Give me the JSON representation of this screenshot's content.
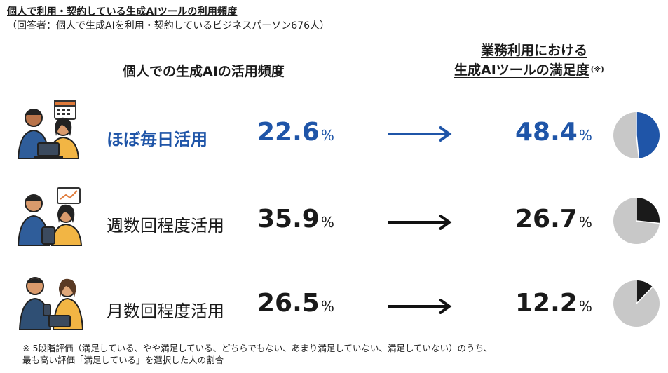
{
  "header": {
    "title": "個人で利用・契約している生成AIツールの利用頻度",
    "subtitle": "（回答者：個人で生成AIを利用・契約しているビジネスパーソン676人）"
  },
  "columns": {
    "left": "個人での生成AIの活用頻度",
    "right_line1": "業務利用における",
    "right_line2": "生成AIツールの満足度",
    "right_note": "(※)"
  },
  "rows": [
    {
      "label": "ほぼ毎日活用",
      "pct": "22.6",
      "unit": "%",
      "sat": "48.4",
      "sat_unit": "%",
      "highlight": true,
      "color": "#1f55a8"
    },
    {
      "label": "週数回程度活用",
      "pct": "35.9",
      "unit": "%",
      "sat": "26.7",
      "sat_unit": "%",
      "highlight": false,
      "color": "#1a1a1a"
    },
    {
      "label": "月数回程度活用",
      "pct": "26.5",
      "unit": "%",
      "sat": "12.2",
      "sat_unit": "%",
      "highlight": false,
      "color": "#1a1a1a"
    }
  ],
  "footnote": {
    "line1": "※ 5段階評価（満足している、やや満足している、どちらでもない、あまり満足していない、満足していない）のうち、",
    "line2": "最も高い評価「満足している」を選択した人の割合"
  },
  "chart_data": {
    "type": "pie",
    "title": "個人で利用・契約している生成AIツールの利用頻度",
    "categories": [
      "ほぼ毎日活用",
      "週数回程度活用",
      "月数回程度活用"
    ],
    "series": [
      {
        "name": "個人での生成AIの活用頻度",
        "values": [
          22.6,
          35.9,
          26.5
        ]
      },
      {
        "name": "業務利用における生成AIツールの満足度",
        "values": [
          48.4,
          26.7,
          12.2
        ]
      }
    ],
    "pie_colors": {
      "filled": [
        "#1f55a8",
        "#1a1a1a",
        "#1a1a1a"
      ],
      "remainder": "#c8c8c8"
    }
  }
}
